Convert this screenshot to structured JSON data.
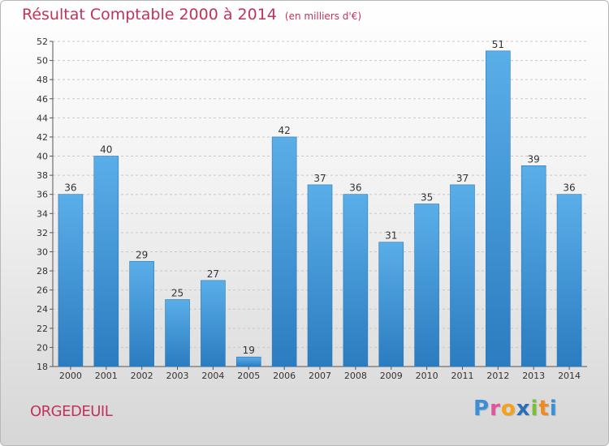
{
  "title": "Résultat Comptable 2000 à 2014",
  "unit": "(en milliers d'€)",
  "town": "ORGEDEUIL",
  "logo": {
    "letters": [
      "P",
      "r",
      "o",
      "x",
      "i",
      "t",
      "i"
    ],
    "colors": [
      "#3a8fd8",
      "#e0559b",
      "#f6a11a",
      "#2a6fb5",
      "#7abf3b",
      "#f08a24",
      "#3a8fd8"
    ]
  },
  "colors": {
    "bar": "#4aa0e0",
    "title": "#c0335a"
  },
  "chart_data": {
    "type": "bar",
    "categories": [
      "2000",
      "2001",
      "2002",
      "2003",
      "2004",
      "2005",
      "2006",
      "2007",
      "2008",
      "2009",
      "2010",
      "2011",
      "2012",
      "2013",
      "2014"
    ],
    "values": [
      36,
      40,
      29,
      25,
      27,
      19,
      42,
      37,
      36,
      31,
      35,
      37,
      51,
      39,
      36
    ],
    "ylim": [
      18,
      52
    ],
    "yticks": [
      18,
      20,
      22,
      24,
      26,
      28,
      30,
      32,
      34,
      36,
      38,
      40,
      42,
      44,
      46,
      48,
      50,
      52
    ],
    "grid": true
  }
}
